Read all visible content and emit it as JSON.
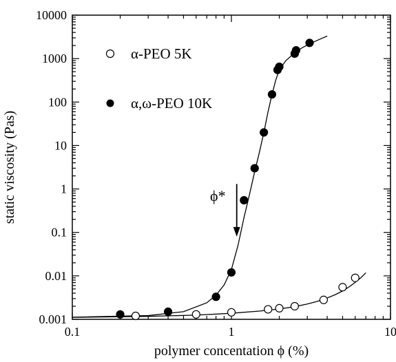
{
  "chart_data": {
    "type": "scatter",
    "title": "",
    "xlabel": "polymer concentation  ϕ  (%)",
    "ylabel": "static viscosity  (Pas)",
    "xscale": "log",
    "yscale": "log",
    "xlim": [
      0.1,
      10
    ],
    "ylim": [
      0.001,
      10000
    ],
    "x_ticks": [
      {
        "value": 0.1,
        "label": "0.1"
      },
      {
        "value": 1,
        "label": "1"
      },
      {
        "value": 10,
        "label": "10"
      }
    ],
    "y_ticks": [
      {
        "value": 0.001,
        "label": "0.001"
      },
      {
        "value": 0.01,
        "label": "0.01"
      },
      {
        "value": 0.1,
        "label": "0.1"
      },
      {
        "value": 1,
        "label": "1"
      },
      {
        "value": 10,
        "label": "10"
      },
      {
        "value": 100,
        "label": "100"
      },
      {
        "value": 1000,
        "label": "1000"
      },
      {
        "value": 10000,
        "label": "10000"
      }
    ],
    "grid": false,
    "legend": "top-left",
    "series": [
      {
        "name": "α-PEO 5K",
        "marker": "open-circle",
        "x": [
          0.25,
          0.6,
          1.0,
          1.7,
          2.0,
          2.5,
          3.8,
          5.0,
          6.0
        ],
        "y": [
          0.0012,
          0.0013,
          0.00145,
          0.0017,
          0.0018,
          0.002,
          0.0028,
          0.0055,
          0.009
        ],
        "fit_x": [
          0.1,
          0.3,
          0.6,
          1.0,
          1.5,
          2.0,
          2.5,
          3.0,
          3.5,
          4.0,
          4.5,
          5.0,
          5.5,
          6.0,
          6.5,
          7.0
        ],
        "fit_y": [
          0.00111,
          0.00117,
          0.00125,
          0.00138,
          0.00155,
          0.00173,
          0.00196,
          0.00225,
          0.00262,
          0.0031,
          0.0037,
          0.0045,
          0.0056,
          0.0071,
          0.009,
          0.0118
        ]
      },
      {
        "name": "α,ω-PEO 10K",
        "marker": "filled-circle",
        "x": [
          0.2,
          0.4,
          0.8,
          1.0,
          1.2,
          1.4,
          1.6,
          1.8,
          1.95,
          2.0,
          2.5,
          2.55,
          3.1
        ],
        "y": [
          0.0013,
          0.0015,
          0.0033,
          0.012,
          0.55,
          3,
          20,
          150,
          550,
          650,
          1300,
          1550,
          2300
        ],
        "fit_x": [
          0.1,
          0.3,
          0.5,
          0.7,
          0.8,
          0.9,
          1.0,
          1.1,
          1.2,
          1.3,
          1.4,
          1.5,
          1.6,
          1.7,
          1.8,
          1.9,
          2.0,
          2.2,
          2.5,
          2.8,
          3.2,
          3.6,
          4.0
        ],
        "fit_y": [
          0.00112,
          0.00122,
          0.0015,
          0.0024,
          0.0036,
          0.0062,
          0.014,
          0.05,
          0.22,
          0.75,
          2.5,
          7,
          20,
          60,
          150,
          320,
          550,
          900,
          1350,
          1800,
          2300,
          2800,
          3300
        ]
      }
    ],
    "annotations": [
      {
        "text": "ϕ*",
        "type": "arrow",
        "x": 1.08,
        "y_from": 1.3,
        "y_to": 0.08
      }
    ]
  }
}
